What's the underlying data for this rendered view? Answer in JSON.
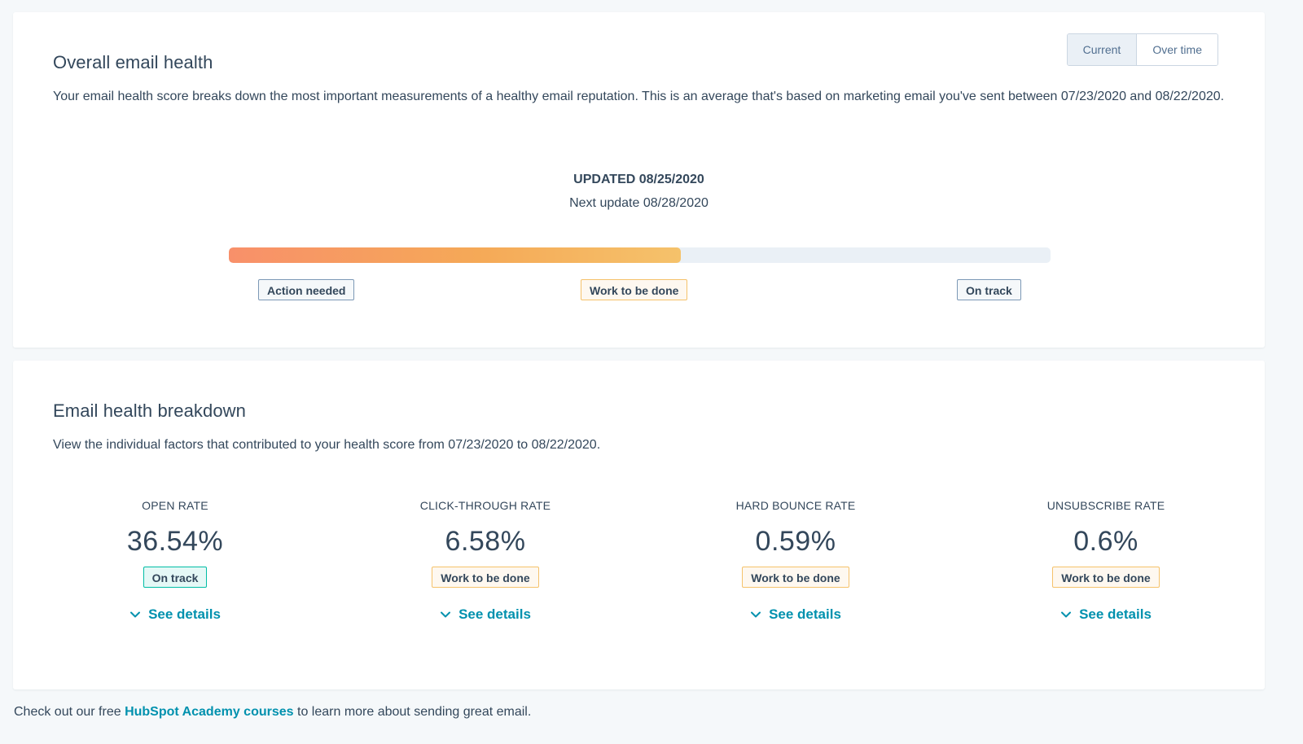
{
  "overall": {
    "title": "Overall email health",
    "description": "Your email health score breaks down the most important measurements of a healthy email reputation. This is an average that's based on marketing email you've sent between 07/23/2020 and 08/22/2020.",
    "toggle": {
      "current_label": "Current",
      "over_time_label": "Over time",
      "selected": "Current"
    },
    "updated": "UPDATED 08/25/2020",
    "next_update": "Next update 08/28/2020",
    "score_fraction": 0.55,
    "scale_labels": {
      "action_needed": "Action needed",
      "work_to_be_done": "Work to be done",
      "on_track": "On track"
    }
  },
  "breakdown": {
    "title": "Email health breakdown",
    "description": "View the individual factors that contributed to your health score from 07/23/2020 to 08/22/2020.",
    "metrics": [
      {
        "label": "OPEN RATE",
        "value": "36.54%",
        "status": "On track",
        "status_type": "success",
        "details_label": "See details"
      },
      {
        "label": "CLICK-THROUGH RATE",
        "value": "6.58%",
        "status": "Work to be done",
        "status_type": "warning",
        "details_label": "See details"
      },
      {
        "label": "HARD BOUNCE RATE",
        "value": "0.59%",
        "status": "Work to be done",
        "status_type": "warning",
        "details_label": "See details"
      },
      {
        "label": "UNSUBSCRIBE RATE",
        "value": "0.6%",
        "status": "Work to be done",
        "status_type": "warning",
        "details_label": "See details"
      }
    ]
  },
  "footer": {
    "prefix": "Check out our free",
    "link_text": "HubSpot Academy courses",
    "suffix": "to learn more about sending great email."
  },
  "colors": {
    "page_background": "#f5f8fa",
    "text": "#33475b",
    "link": "#0091ae",
    "bar_gradient_start": "#f8906a",
    "bar_gradient_end": "#f5c26b",
    "warning_border": "#f5c26b",
    "success_border": "#00bda5",
    "neutral_border": "#7c98b6"
  },
  "icons": {
    "see_details": "chevron-down-icon"
  }
}
